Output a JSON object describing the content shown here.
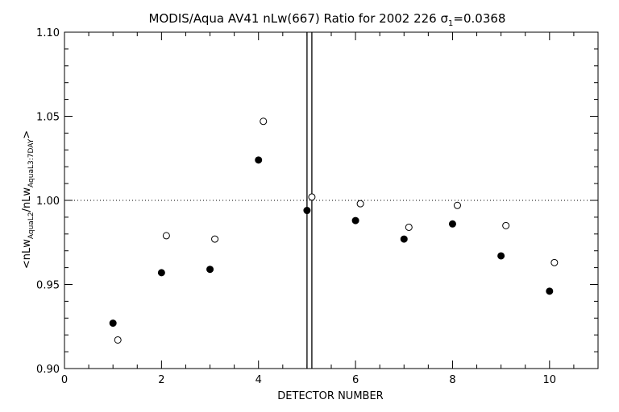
{
  "chart_data": {
    "type": "scatter",
    "title_main": "MODIS/Aqua AV41 nLw(667) Ratio for 2002 226 ",
    "title_sigma": "σ",
    "title_sigma_sub": "1",
    "title_value": "=0.0368",
    "xlabel": "DETECTOR NUMBER",
    "ylabel": {
      "open": "<nLw",
      "sub1": "AquaL2",
      "mid": "/nLw",
      "sub2": "AquaL3:7DAY",
      "close": ">"
    },
    "xlim": [
      0,
      11
    ],
    "ylim": [
      0.9,
      1.1
    ],
    "x_ticks": [
      0,
      2,
      4,
      6,
      8,
      10
    ],
    "y_ticks": [
      0.9,
      0.95,
      1.0,
      1.05,
      1.1
    ],
    "x_tick_labels": [
      "0",
      "2",
      "4",
      "6",
      "8",
      "10"
    ],
    "y_tick_labels": [
      "0.90",
      "0.95",
      "1.00",
      "1.05",
      "1.10"
    ],
    "reference_line_y": 1.0,
    "vertical_lines_x": [
      5.0,
      5.1
    ],
    "grid": false,
    "legend": "none",
    "series": [
      {
        "marker": "filled-circle",
        "x": [
          1,
          2,
          3,
          4,
          5,
          6,
          7,
          8,
          9,
          10
        ],
        "y": [
          0.927,
          0.957,
          0.959,
          1.024,
          0.994,
          0.988,
          0.977,
          0.986,
          0.967,
          0.946
        ]
      },
      {
        "marker": "open-circle",
        "x": [
          1.1,
          2.1,
          3.1,
          4.1,
          5.1,
          6.1,
          7.1,
          8.1,
          9.1,
          10.1
        ],
        "y": [
          0.917,
          0.979,
          0.977,
          1.047,
          1.002,
          0.998,
          0.984,
          0.997,
          0.985,
          0.963
        ]
      }
    ]
  }
}
